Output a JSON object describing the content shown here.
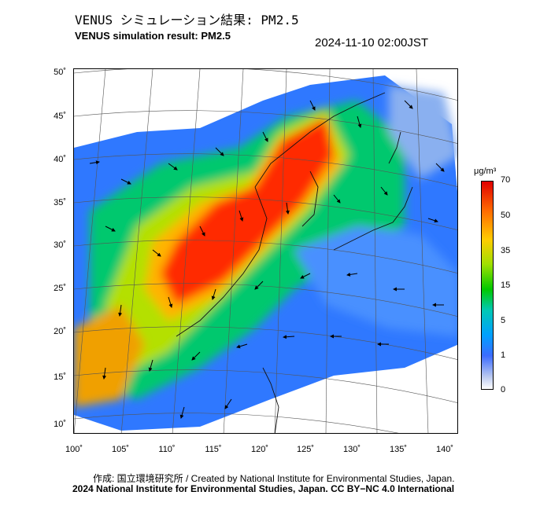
{
  "header": {
    "title_jp": "VENUS シミュレーション結果: PM2.5",
    "title_en": "VENUS simulation result: PM2.5",
    "timestamp": "2024-11-10 02:00JST"
  },
  "map": {
    "lat_labels": [
      "50˚",
      "45˚",
      "40˚",
      "35˚",
      "30˚",
      "25˚",
      "20˚",
      "15˚",
      "10˚"
    ],
    "lon_labels": [
      "100˚",
      "105˚",
      "110˚",
      "115˚",
      "120˚",
      "125˚",
      "130˚",
      "135˚",
      "140˚"
    ]
  },
  "colorbar": {
    "unit": "μg/m³",
    "labels": [
      "70",
      "50",
      "35",
      "15",
      "5",
      "1",
      "0"
    ]
  },
  "footer": {
    "credit": "作成: 国立環境研究所 / Created by National Institute for Environmental Studies, Japan.",
    "copyright": "2024 National Institute for Environmental Studies, Japan. CC BY−NC 4.0 International"
  }
}
